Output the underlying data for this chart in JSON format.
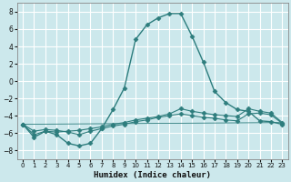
{
  "xlabel": "Humidex (Indice chaleur)",
  "bg_color": "#cce8ec",
  "grid_color": "#ffffff",
  "line_color": "#2d7d7d",
  "xlim": [
    -0.5,
    23.5
  ],
  "ylim": [
    -9,
    9
  ],
  "xticks": [
    0,
    1,
    2,
    3,
    4,
    5,
    6,
    7,
    8,
    9,
    10,
    11,
    12,
    13,
    14,
    15,
    16,
    17,
    18,
    19,
    20,
    21,
    22,
    23
  ],
  "yticks": [
    -8,
    -6,
    -4,
    -2,
    0,
    2,
    4,
    6,
    8
  ],
  "line1_x": [
    0,
    1,
    2,
    3,
    4,
    5,
    6,
    7,
    8,
    9,
    10,
    11,
    12,
    13,
    14,
    15,
    16,
    17,
    18,
    19,
    20,
    21,
    22,
    23
  ],
  "line1_y": [
    -5.0,
    -6.5,
    -5.8,
    -6.2,
    -7.2,
    -7.5,
    -7.2,
    -5.5,
    -3.3,
    -0.8,
    4.8,
    6.5,
    7.3,
    7.8,
    7.8,
    5.2,
    2.2,
    -1.2,
    -2.5,
    -3.3,
    -3.5,
    -4.6,
    -4.7,
    -5.0
  ],
  "line2_x": [
    0,
    1,
    2,
    3,
    4,
    5,
    6,
    7,
    8,
    9,
    10,
    11,
    12,
    13,
    14,
    15,
    16,
    17,
    18,
    19,
    20,
    21,
    22,
    23
  ],
  "line2_y": [
    -5.0,
    -6.2,
    -5.8,
    -5.9,
    -5.8,
    -5.7,
    -5.5,
    -5.3,
    -5.0,
    -4.8,
    -4.5,
    -4.3,
    -4.1,
    -3.8,
    -3.2,
    -3.5,
    -3.7,
    -3.9,
    -4.0,
    -4.1,
    -3.2,
    -3.5,
    -3.7,
    -4.8
  ],
  "line3_x": [
    0,
    1,
    2,
    3,
    4,
    5,
    6,
    7,
    8,
    9,
    10,
    11,
    12,
    13,
    14,
    15,
    16,
    17,
    18,
    19,
    20,
    21,
    22,
    23
  ],
  "line3_y": [
    -5.0,
    -5.8,
    -5.6,
    -5.7,
    -5.9,
    -6.2,
    -5.8,
    -5.5,
    -5.2,
    -5.0,
    -4.7,
    -4.5,
    -4.2,
    -4.0,
    -3.8,
    -4.0,
    -4.2,
    -4.3,
    -4.5,
    -4.6,
    -3.8,
    -3.7,
    -3.9,
    -4.9
  ],
  "line4_x": [
    0,
    23
  ],
  "line4_y": [
    -5.0,
    -4.8
  ]
}
